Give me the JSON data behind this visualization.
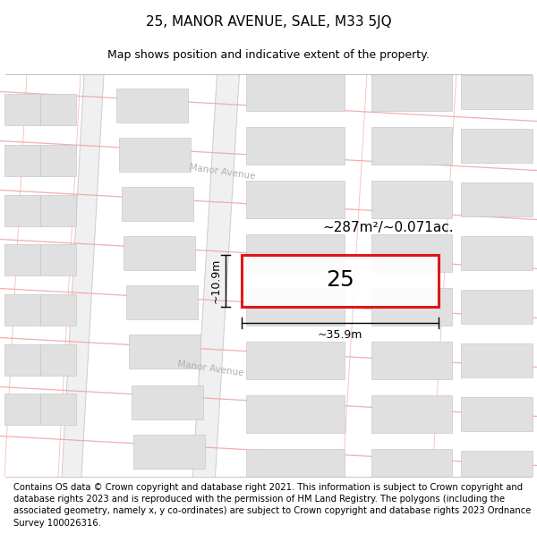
{
  "title": "25, MANOR AVENUE, SALE, M33 5JQ",
  "subtitle": "Map shows position and indicative extent of the property.",
  "footer": "Contains OS data © Crown copyright and database right 2021. This information is subject to Crown copyright and database rights 2023 and is reproduced with the permission of HM Land Registry. The polygons (including the associated geometry, namely x, y co-ordinates) are subject to Crown copyright and database rights 2023 Ordnance Survey 100026316.",
  "area_text": "~287m²/~0.071ac.",
  "property_number": "25",
  "dim_width": "~35.9m",
  "dim_height": "~10.9m",
  "bg_color": "#ffffff",
  "plot_outline_color": "#dd0000",
  "building_fill": "#e0e0e0",
  "building_edge": "#c0c0c0",
  "road_line_color": "#f0a0a0",
  "road_fill_color": "#f8f0f0",
  "street_color": "#e8e8e8",
  "manor_color": "#b0b0b0",
  "title_fontsize": 11,
  "subtitle_fontsize": 9,
  "footer_fontsize": 7.2
}
